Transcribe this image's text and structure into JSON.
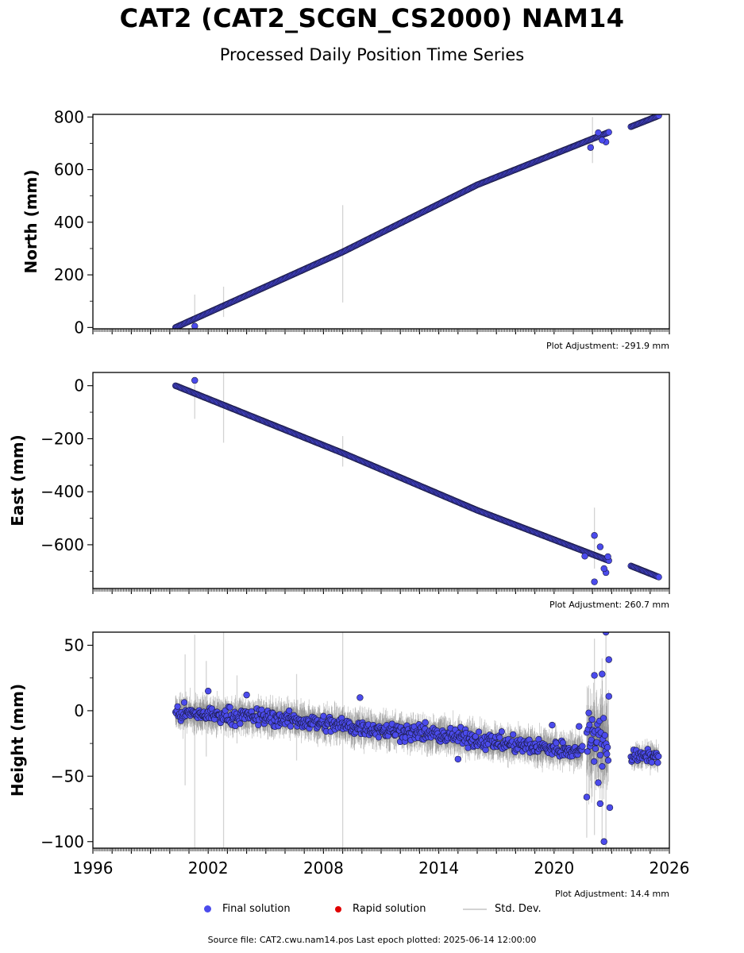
{
  "header": {
    "title": "CAT2 (CAT2_SCGN_CS2000) NAM14",
    "subtitle": "Processed Daily Position Time Series"
  },
  "colors": {
    "final": "#4b4bec",
    "final_edge": "#1a1a40",
    "rapid": "#e00000",
    "stddev": "#d3d3d3",
    "scatter_band": "#6f6f6f"
  },
  "legend": {
    "final": "Final solution",
    "rapid": "Rapid solution",
    "stddev": "Std. Dev."
  },
  "footer": {
    "text": "Source file: CAT2.cwu.nam14.pos  Last epoch plotted: 2025-06-14 12:00:00"
  },
  "chart_data": [
    {
      "type": "scatter",
      "name": "north",
      "ylabel": "North (mm)",
      "adjustment": "Plot Adjustment: -291.9 mm",
      "xlim": [
        1996,
        2026
      ],
      "ylim": [
        -5,
        810
      ],
      "yticks": [
        0,
        200,
        400,
        600,
        800
      ],
      "ytick_labels": [
        "0",
        "200",
        "400",
        "600",
        "800"
      ],
      "series": [
        {
          "segments": [
            {
              "x": [
                2000.3,
                2009.0,
                2016.0,
                2022.85
              ],
              "y": [
                0,
                287,
                542,
                742
              ]
            },
            {
              "x": [
                2024.0,
                2025.45
              ],
              "y": [
                763,
                805
              ]
            }
          ]
        }
      ],
      "outliers": [
        {
          "x": 2001.3,
          "y": 5
        },
        {
          "x": 2021.9,
          "y": 684
        },
        {
          "x": 2022.3,
          "y": 740
        },
        {
          "x": 2022.7,
          "y": 705
        },
        {
          "x": 2022.5,
          "y": 712
        }
      ],
      "std_bars": [
        {
          "x": 2001.3,
          "low": -15,
          "high": 125
        },
        {
          "x": 2002.8,
          "low": 40,
          "high": 155
        },
        {
          "x": 2009.0,
          "low": 95,
          "high": 465
        },
        {
          "x": 2022.0,
          "low": 625,
          "high": 800
        }
      ]
    },
    {
      "type": "scatter",
      "name": "east",
      "ylabel": "East (mm)",
      "adjustment": "Plot Adjustment: 260.7 mm",
      "xlim": [
        1996,
        2026
      ],
      "ylim": [
        -765,
        50
      ],
      "yticks": [
        0,
        -200,
        -400,
        -600
      ],
      "ytick_labels": [
        "0",
        "−200",
        "−400",
        "−600"
      ],
      "series": [
        {
          "segments": [
            {
              "x": [
                2000.3,
                2009.0,
                2016.0,
                2022.85
              ],
              "y": [
                0,
                -254,
                -470,
                -660
              ]
            },
            {
              "x": [
                2024.0,
                2025.45
              ],
              "y": [
                -680,
                -722
              ]
            }
          ]
        }
      ],
      "outliers": [
        {
          "x": 2001.3,
          "y": 20
        },
        {
          "x": 2022.1,
          "y": -565
        },
        {
          "x": 2022.1,
          "y": -740
        },
        {
          "x": 2021.6,
          "y": -643
        },
        {
          "x": 2022.4,
          "y": -608
        },
        {
          "x": 2022.7,
          "y": -705
        },
        {
          "x": 2022.8,
          "y": -645
        },
        {
          "x": 2022.6,
          "y": -690
        }
      ],
      "std_bars": [
        {
          "x": 2001.3,
          "low": -125,
          "high": 5
        },
        {
          "x": 2002.8,
          "low": -215,
          "high": 50
        },
        {
          "x": 2009.0,
          "low": -305,
          "high": -190
        },
        {
          "x": 2022.1,
          "low": -690,
          "high": -460
        }
      ]
    },
    {
      "type": "scatter",
      "name": "height",
      "ylabel": "Height (mm)",
      "adjustment": "Plot Adjustment: 14.4 mm",
      "xlim": [
        1996,
        2026
      ],
      "ylim": [
        -105,
        60
      ],
      "yticks": [
        50,
        0,
        -50,
        -100
      ],
      "ytick_labels": [
        "50",
        "0",
        "−50",
        "−100"
      ],
      "xticks": [
        1996,
        2002,
        2008,
        2014,
        2020,
        2026
      ],
      "xtick_labels": [
        "1996",
        "2002",
        "2008",
        "2014",
        "2020",
        "2026"
      ],
      "series": [
        {
          "segments": [
            {
              "x": [
                2000.3,
                2005.0,
                2010.0,
                2015.0,
                2018.5,
                2021.5
              ],
              "y": [
                -2,
                -5,
                -13,
                -20,
                -27,
                -31
              ],
              "spread": 8
            },
            {
              "x": [
                2021.7,
                2022.85
              ],
              "y": [
                -20,
                -25
              ],
              "spread": 22
            },
            {
              "x": [
                2024.0,
                2025.45
              ],
              "y": [
                -35,
                -35
              ],
              "spread": 6
            }
          ]
        }
      ],
      "outliers": [
        {
          "x": 2022.7,
          "y": 60
        },
        {
          "x": 2022.85,
          "y": 39
        },
        {
          "x": 2022.5,
          "y": 28
        },
        {
          "x": 2022.1,
          "y": 27
        },
        {
          "x": 2022.85,
          "y": 11
        },
        {
          "x": 2022.6,
          "y": -100
        },
        {
          "x": 2021.7,
          "y": -66
        },
        {
          "x": 2022.9,
          "y": -74
        },
        {
          "x": 2022.4,
          "y": -71
        },
        {
          "x": 2022.3,
          "y": -55
        },
        {
          "x": 2009.9,
          "y": 10
        },
        {
          "x": 2002.0,
          "y": 15
        },
        {
          "x": 2019.9,
          "y": -11
        },
        {
          "x": 2021.3,
          "y": -12
        },
        {
          "x": 2015.0,
          "y": -37
        },
        {
          "x": 2013.3,
          "y": -9
        },
        {
          "x": 2004.0,
          "y": 12
        }
      ],
      "std_bars": [
        {
          "x": 2000.8,
          "low": -57,
          "high": 43
        },
        {
          "x": 2001.3,
          "low": -105,
          "high": 58
        },
        {
          "x": 2002.8,
          "low": -105,
          "high": 60
        },
        {
          "x": 2009.0,
          "low": -105,
          "high": 60
        },
        {
          "x": 2001.9,
          "low": -35,
          "high": 38
        },
        {
          "x": 2003.5,
          "low": -25,
          "high": 27
        },
        {
          "x": 2006.6,
          "low": -38,
          "high": 28
        },
        {
          "x": 2021.7,
          "low": -97,
          "high": -38
        },
        {
          "x": 2022.1,
          "low": -95,
          "high": 55
        },
        {
          "x": 2022.5,
          "low": -100,
          "high": 40
        },
        {
          "x": 2022.7,
          "low": -105,
          "high": 60
        }
      ]
    }
  ]
}
